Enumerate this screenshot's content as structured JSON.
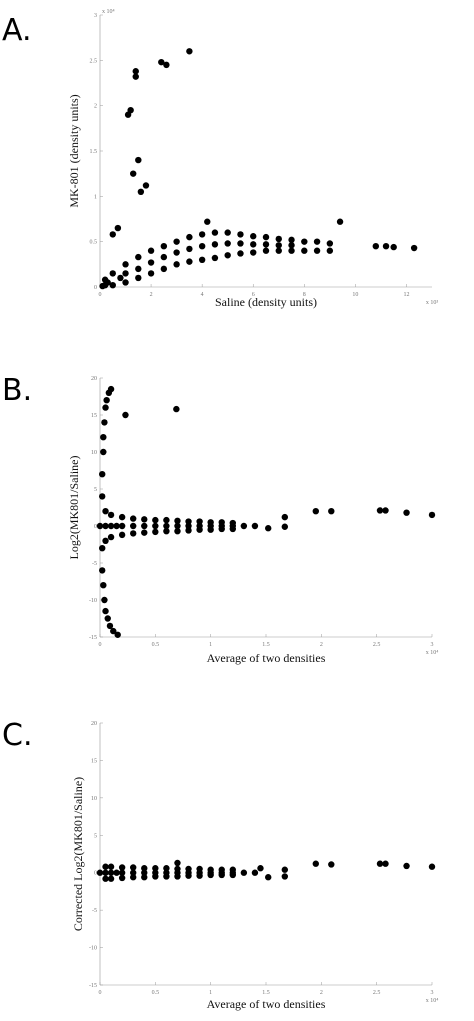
{
  "chart_data": [
    {
      "type": "scatter",
      "panel_label": "A.",
      "xlabel": "Saline (density units)",
      "ylabel": "MK-801 (density units)",
      "x_exponent": "x 10³",
      "y_exponent": "x 10⁴",
      "color": "#000000",
      "xlim": [
        0,
        13
      ],
      "xticks": [
        0,
        2,
        4,
        6,
        8,
        10,
        12
      ],
      "ylim": [
        0,
        3
      ],
      "yticks": [
        0,
        0.5,
        1,
        1.5,
        2,
        2.5,
        3
      ],
      "x": [
        3.5,
        2.4,
        2.6,
        1.4,
        1.4,
        1.2,
        1.1,
        1.5,
        1.8,
        1.3,
        1.6,
        0.7,
        0.5,
        4.2,
        9.4,
        10.8,
        11.2,
        11.5,
        12.3,
        0.2,
        0.5,
        1,
        1.5,
        2,
        2.5,
        3,
        3.5,
        4,
        4.5,
        5,
        5.5,
        6,
        6.5,
        7,
        7.5,
        8,
        8.5,
        9,
        0.2,
        0.5,
        1,
        1.5,
        2,
        2.5,
        3,
        3.5,
        4,
        4.5,
        5,
        5.5,
        6,
        6.5,
        7,
        7.5,
        8,
        8.5,
        9,
        1,
        1.5,
        2,
        2.5,
        3,
        3.5,
        4,
        4.5,
        5,
        5.5,
        6,
        6.5,
        7,
        7.5,
        0.1,
        0.3,
        0.8
      ],
      "values": [
        2.6,
        2.48,
        2.45,
        2.38,
        2.32,
        1.95,
        1.9,
        1.4,
        1.12,
        1.25,
        1.05,
        0.65,
        0.58,
        0.72,
        0.72,
        0.45,
        0.45,
        0.44,
        0.43,
        0.08,
        0.15,
        0.25,
        0.33,
        0.4,
        0.45,
        0.5,
        0.55,
        0.58,
        0.6,
        0.6,
        0.58,
        0.56,
        0.55,
        0.53,
        0.52,
        0.5,
        0.5,
        0.48,
        0.02,
        0.02,
        0.05,
        0.1,
        0.15,
        0.2,
        0.25,
        0.28,
        0.3,
        0.32,
        0.35,
        0.37,
        0.38,
        0.4,
        0.4,
        0.4,
        0.4,
        0.4,
        0.4,
        0.15,
        0.2,
        0.27,
        0.33,
        0.38,
        0.42,
        0.45,
        0.47,
        0.48,
        0.48,
        0.47,
        0.47,
        0.46,
        0.46,
        0.01,
        0.05,
        0.1
      ]
    },
    {
      "type": "scatter",
      "panel_label": "B.",
      "xlabel": "Average of two densities",
      "ylabel": "Log2(MK801/Saline)",
      "x_exponent": "x 10⁴",
      "color": "#000000",
      "xlim": [
        0,
        3
      ],
      "xticks": [
        0,
        0.5,
        1,
        1.5,
        2,
        2.5,
        3
      ],
      "ylim": [
        -15,
        20
      ],
      "yticks": [
        -15,
        -10,
        -5,
        0,
        5,
        10,
        15,
        20
      ],
      "x": [
        0.02,
        0.02,
        0.03,
        0.03,
        0.04,
        0.05,
        0.06,
        0.08,
        0.1,
        0.02,
        0.02,
        0.03,
        0.04,
        0.05,
        0.07,
        0.09,
        0.12,
        0.16,
        0.23,
        0.69,
        0,
        0.05,
        0.1,
        0.15,
        0.2,
        0.3,
        0.4,
        0.5,
        0.6,
        0.7,
        0.8,
        0.9,
        1,
        1.1,
        1.2,
        1.3,
        1.4,
        0.05,
        0.1,
        0.2,
        0.3,
        0.4,
        0.5,
        0.6,
        0.7,
        0.8,
        0.9,
        1,
        1.1,
        1.2,
        0.05,
        0.1,
        0.2,
        0.3,
        0.4,
        0.5,
        0.6,
        0.7,
        0.8,
        0.9,
        1,
        1.1,
        1.2,
        1.52,
        1.67,
        1.67,
        1.95,
        2.09,
        2.53,
        2.58,
        2.77,
        3
      ],
      "values": [
        4,
        7,
        10,
        12,
        14,
        16,
        17,
        18,
        18.5,
        -3,
        -6,
        -8,
        -10,
        -11.5,
        -12.5,
        -13.5,
        -14.2,
        -14.7,
        15,
        15.8,
        0,
        0,
        0,
        0,
        0,
        0,
        0,
        0,
        0,
        0,
        0,
        0,
        0,
        0,
        0,
        0,
        0,
        2,
        1.5,
        1.2,
        1,
        0.9,
        0.8,
        0.8,
        0.7,
        0.6,
        0.6,
        0.5,
        0.5,
        0.4,
        -2,
        -1.5,
        -1.2,
        -1,
        -0.9,
        -0.8,
        -0.7,
        -0.7,
        -0.6,
        -0.5,
        -0.5,
        -0.4,
        -0.4,
        -0.3,
        1.2,
        -0.1,
        2,
        2,
        2.1,
        2.1,
        1.8,
        1.5
      ]
    },
    {
      "type": "scatter",
      "panel_label": "C.",
      "xlabel": "Average of two densities",
      "ylabel": "Corrected Log2(MK801/Saline)",
      "x_exponent": "x 10⁴",
      "color": "#000000",
      "xlim": [
        0,
        3
      ],
      "xticks": [
        0,
        0.5,
        1,
        1.5,
        2,
        2.5,
        3
      ],
      "ylim": [
        -15,
        20
      ],
      "yticks": [
        -15,
        -10,
        -5,
        0,
        5,
        10,
        15,
        20
      ],
      "x": [
        0,
        0.05,
        0.1,
        0.15,
        0.2,
        0.3,
        0.4,
        0.5,
        0.6,
        0.7,
        0.8,
        0.9,
        1,
        1.1,
        1.2,
        1.3,
        1.4,
        0.05,
        0.1,
        0.2,
        0.3,
        0.4,
        0.5,
        0.6,
        0.7,
        0.8,
        0.9,
        1,
        1.1,
        1.2,
        0.05,
        0.1,
        0.2,
        0.3,
        0.4,
        0.5,
        0.6,
        0.7,
        0.8,
        0.9,
        1,
        1.1,
        1.2,
        0.7,
        1.45,
        1.52,
        1.67,
        1.67,
        1.95,
        2.09,
        2.53,
        2.58,
        2.77,
        3
      ],
      "values": [
        0,
        0,
        0,
        0,
        0,
        0,
        0,
        0,
        0,
        0,
        0,
        0,
        0,
        0,
        0,
        0,
        0,
        0.8,
        0.8,
        0.7,
        0.7,
        0.6,
        0.6,
        0.6,
        0.5,
        0.5,
        0.5,
        0.4,
        0.4,
        0.4,
        -0.8,
        -0.8,
        -0.7,
        -0.6,
        -0.6,
        -0.5,
        -0.5,
        -0.5,
        -0.4,
        -0.4,
        -0.3,
        -0.3,
        -0.3,
        1.3,
        0.6,
        -0.6,
        0.4,
        -0.5,
        1.2,
        1.1,
        1.2,
        1.2,
        0.9,
        0.8
      ]
    }
  ]
}
